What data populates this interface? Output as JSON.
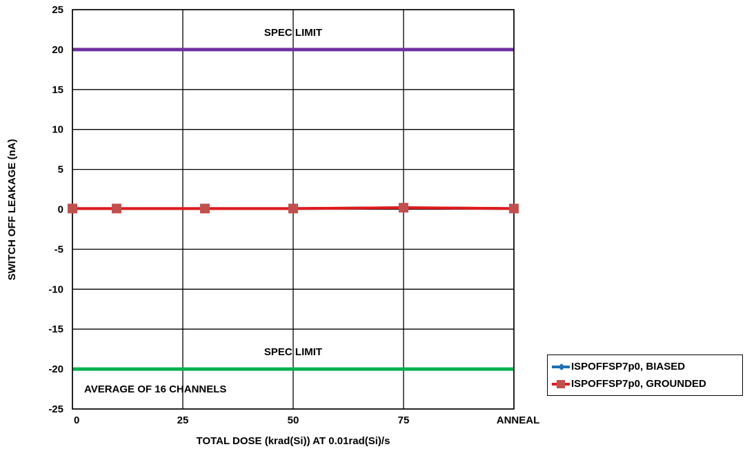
{
  "chart_data": {
    "type": "line",
    "xlabel": "TOTAL DOSE (krad(Si)) AT 0.01rad(Si)/s",
    "ylabel": "SWITCH OFF LEAKAGE (nA)",
    "ylim": [
      -25,
      25
    ],
    "y_ticks": [
      "25",
      "20",
      "15",
      "10",
      "5",
      "0",
      "-5",
      "-10",
      "-15",
      "-20",
      "-25"
    ],
    "x_ticks": [
      "0",
      "25",
      "50",
      "75",
      "ANNEAL"
    ],
    "x_positions": [
      0,
      25,
      50,
      75,
      100
    ],
    "grid": true,
    "series": [
      {
        "name": "ISPOFFSP7p0, BIASED",
        "color": "#1f6fb5",
        "marker": "diamond",
        "x": [
          0,
          10,
          30,
          50,
          75,
          100
        ],
        "values": [
          0.1,
          0.1,
          0.1,
          0.1,
          0.2,
          0.1
        ]
      },
      {
        "name": "ISPOFFSP7p0, GROUNDED",
        "color": "#e31a1c",
        "marker": "square",
        "marker_color": "#c0504d",
        "x": [
          0,
          10,
          30,
          50,
          75,
          100
        ],
        "values": [
          0.1,
          0.1,
          0.1,
          0.1,
          0.2,
          0.1
        ]
      }
    ],
    "reference_lines": [
      {
        "label": "SPEC LIMIT",
        "value": 20,
        "color": "#7030a0"
      },
      {
        "label": "SPEC LIMIT",
        "value": -20,
        "color": "#00b050"
      }
    ],
    "annotations": [
      "AVERAGE OF 16 CHANNELS"
    ]
  }
}
